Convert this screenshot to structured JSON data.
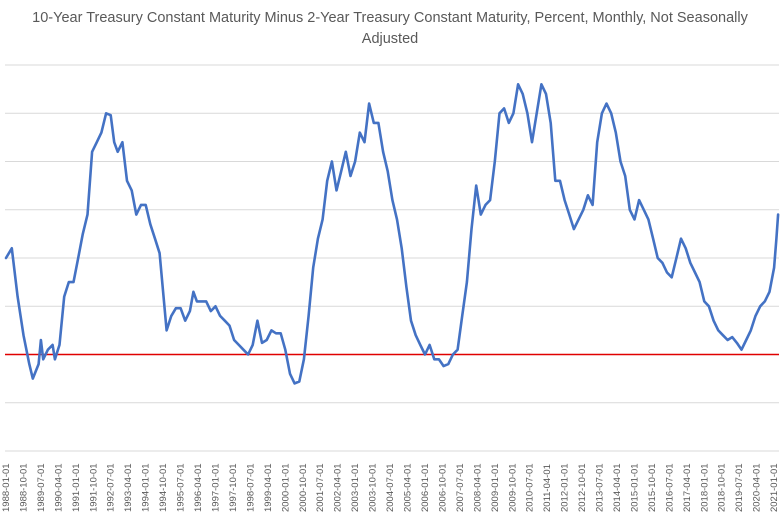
{
  "chart_data": {
    "type": "line",
    "title": "10-Year Treasury Constant Maturity Minus 2-Year Treasury Constant Maturity, Percent, Monthly, Not Seasonally Adjusted",
    "xlabel": "",
    "ylabel": "",
    "ylim": [
      -1.0,
      3.0
    ],
    "grid": true,
    "y_tick_labels_shown": false,
    "x_tick_labels": [
      "1988-01-01",
      "1988-10-01",
      "1989-07-01",
      "1990-04-01",
      "1991-01-01",
      "1991-10-01",
      "1992-07-01",
      "1993-04-01",
      "1994-01-01",
      "1994-10-01",
      "1995-07-01",
      "1996-04-01",
      "1997-01-01",
      "1997-10-01",
      "1998-07-01",
      "1999-04-01",
      "2000-01-01",
      "2000-10-01",
      "2001-07-01",
      "2002-04-01",
      "2003-01-01",
      "2003-10-01",
      "2004-07-01",
      "2005-04-01",
      "2006-01-01",
      "2006-10-01",
      "2007-07-01",
      "2008-04-01",
      "2009-01-01",
      "2009-10-01",
      "2010-07-01",
      "2011-04-01",
      "2012-01-01",
      "2012-10-01",
      "2013-07-01",
      "2014-04-01",
      "2015-01-01",
      "2015-10-01",
      "2016-07-01",
      "2017-04-01",
      "2018-01-01",
      "2018-10-01",
      "2019-07-01",
      "2020-04-01",
      "2021-01-01"
    ],
    "reference_line": {
      "y": 0,
      "color": "#e00000"
    },
    "series_color": "#4472c4",
    "x_start": "1988-01",
    "x_end": "2021-03",
    "series": [
      {
        "values": [
          [
            1988.0,
            1.0
          ],
          [
            1988.25,
            1.1
          ],
          [
            1988.5,
            0.6
          ],
          [
            1988.75,
            0.2
          ],
          [
            1989.0,
            -0.1
          ],
          [
            1989.15,
            -0.25
          ],
          [
            1989.4,
            -0.1
          ],
          [
            1989.5,
            0.15
          ],
          [
            1989.6,
            -0.05
          ],
          [
            1989.8,
            0.05
          ],
          [
            1990.0,
            0.1
          ],
          [
            1990.1,
            -0.05
          ],
          [
            1990.3,
            0.1
          ],
          [
            1990.5,
            0.6
          ],
          [
            1990.7,
            0.75
          ],
          [
            1990.9,
            0.75
          ],
          [
            1991.1,
            1.0
          ],
          [
            1991.3,
            1.25
          ],
          [
            1991.5,
            1.45
          ],
          [
            1991.7,
            2.1
          ],
          [
            1991.9,
            2.2
          ],
          [
            1992.1,
            2.3
          ],
          [
            1992.3,
            2.5
          ],
          [
            1992.5,
            2.48
          ],
          [
            1992.65,
            2.2
          ],
          [
            1992.8,
            2.1
          ],
          [
            1993.0,
            2.2
          ],
          [
            1993.2,
            1.8
          ],
          [
            1993.4,
            1.7
          ],
          [
            1993.6,
            1.45
          ],
          [
            1993.8,
            1.55
          ],
          [
            1994.0,
            1.55
          ],
          [
            1994.2,
            1.35
          ],
          [
            1994.4,
            1.2
          ],
          [
            1994.6,
            1.05
          ],
          [
            1994.75,
            0.65
          ],
          [
            1994.9,
            0.25
          ],
          [
            1995.1,
            0.4
          ],
          [
            1995.3,
            0.48
          ],
          [
            1995.5,
            0.48
          ],
          [
            1995.7,
            0.35
          ],
          [
            1995.9,
            0.45
          ],
          [
            1996.05,
            0.65
          ],
          [
            1996.2,
            0.55
          ],
          [
            1996.4,
            0.55
          ],
          [
            1996.6,
            0.55
          ],
          [
            1996.8,
            0.45
          ],
          [
            1997.0,
            0.5
          ],
          [
            1997.2,
            0.4
          ],
          [
            1997.4,
            0.35
          ],
          [
            1997.6,
            0.3
          ],
          [
            1997.8,
            0.15
          ],
          [
            1998.0,
            0.1
          ],
          [
            1998.2,
            0.05
          ],
          [
            1998.4,
            0.0
          ],
          [
            1998.6,
            0.1
          ],
          [
            1998.8,
            0.35
          ],
          [
            1999.0,
            0.12
          ],
          [
            1999.2,
            0.15
          ],
          [
            1999.4,
            0.25
          ],
          [
            1999.6,
            0.22
          ],
          [
            1999.8,
            0.22
          ],
          [
            2000.0,
            0.05
          ],
          [
            2000.2,
            -0.2
          ],
          [
            2000.4,
            -0.3
          ],
          [
            2000.6,
            -0.28
          ],
          [
            2000.8,
            -0.05
          ],
          [
            2001.0,
            0.4
          ],
          [
            2001.2,
            0.9
          ],
          [
            2001.4,
            1.2
          ],
          [
            2001.6,
            1.4
          ],
          [
            2001.8,
            1.8
          ],
          [
            2002.0,
            2.0
          ],
          [
            2002.2,
            1.7
          ],
          [
            2002.4,
            1.9
          ],
          [
            2002.6,
            2.1
          ],
          [
            2002.8,
            1.85
          ],
          [
            2003.0,
            2.0
          ],
          [
            2003.2,
            2.3
          ],
          [
            2003.4,
            2.2
          ],
          [
            2003.6,
            2.6
          ],
          [
            2003.8,
            2.4
          ],
          [
            2004.0,
            2.4
          ],
          [
            2004.2,
            2.1
          ],
          [
            2004.4,
            1.9
          ],
          [
            2004.6,
            1.6
          ],
          [
            2004.8,
            1.4
          ],
          [
            2005.0,
            1.1
          ],
          [
            2005.2,
            0.7
          ],
          [
            2005.4,
            0.35
          ],
          [
            2005.6,
            0.2
          ],
          [
            2005.8,
            0.1
          ],
          [
            2006.0,
            0.0
          ],
          [
            2006.2,
            0.1
          ],
          [
            2006.4,
            -0.05
          ],
          [
            2006.6,
            -0.05
          ],
          [
            2006.8,
            -0.12
          ],
          [
            2007.0,
            -0.1
          ],
          [
            2007.2,
            0.0
          ],
          [
            2007.4,
            0.05
          ],
          [
            2007.6,
            0.4
          ],
          [
            2007.8,
            0.75
          ],
          [
            2008.0,
            1.3
          ],
          [
            2008.2,
            1.75
          ],
          [
            2008.4,
            1.45
          ],
          [
            2008.6,
            1.55
          ],
          [
            2008.8,
            1.6
          ],
          [
            2009.0,
            2.0
          ],
          [
            2009.2,
            2.5
          ],
          [
            2009.4,
            2.55
          ],
          [
            2009.6,
            2.4
          ],
          [
            2009.8,
            2.5
          ],
          [
            2010.0,
            2.8
          ],
          [
            2010.2,
            2.7
          ],
          [
            2010.4,
            2.5
          ],
          [
            2010.6,
            2.2
          ],
          [
            2010.8,
            2.5
          ],
          [
            2011.0,
            2.8
          ],
          [
            2011.2,
            2.7
          ],
          [
            2011.4,
            2.4
          ],
          [
            2011.6,
            1.8
          ],
          [
            2011.8,
            1.8
          ],
          [
            2012.0,
            1.6
          ],
          [
            2012.2,
            1.45
          ],
          [
            2012.4,
            1.3
          ],
          [
            2012.6,
            1.4
          ],
          [
            2012.8,
            1.5
          ],
          [
            2013.0,
            1.65
          ],
          [
            2013.2,
            1.55
          ],
          [
            2013.4,
            2.2
          ],
          [
            2013.6,
            2.5
          ],
          [
            2013.8,
            2.6
          ],
          [
            2014.0,
            2.5
          ],
          [
            2014.2,
            2.3
          ],
          [
            2014.4,
            2.0
          ],
          [
            2014.6,
            1.85
          ],
          [
            2014.8,
            1.5
          ],
          [
            2015.0,
            1.4
          ],
          [
            2015.2,
            1.6
          ],
          [
            2015.4,
            1.5
          ],
          [
            2015.6,
            1.4
          ],
          [
            2015.8,
            1.2
          ],
          [
            2016.0,
            1.0
          ],
          [
            2016.2,
            0.95
          ],
          [
            2016.4,
            0.85
          ],
          [
            2016.6,
            0.8
          ],
          [
            2016.8,
            1.0
          ],
          [
            2017.0,
            1.2
          ],
          [
            2017.2,
            1.1
          ],
          [
            2017.4,
            0.95
          ],
          [
            2017.6,
            0.85
          ],
          [
            2017.8,
            0.75
          ],
          [
            2018.0,
            0.55
          ],
          [
            2018.2,
            0.5
          ],
          [
            2018.4,
            0.35
          ],
          [
            2018.6,
            0.25
          ],
          [
            2018.8,
            0.2
          ],
          [
            2019.0,
            0.15
          ],
          [
            2019.2,
            0.18
          ],
          [
            2019.4,
            0.12
          ],
          [
            2019.6,
            0.05
          ],
          [
            2019.8,
            0.15
          ],
          [
            2020.0,
            0.25
          ],
          [
            2020.2,
            0.4
          ],
          [
            2020.4,
            0.5
          ],
          [
            2020.6,
            0.55
          ],
          [
            2020.8,
            0.65
          ],
          [
            2021.0,
            0.9
          ],
          [
            2021.1,
            1.2
          ],
          [
            2021.17,
            1.45
          ]
        ]
      }
    ]
  }
}
